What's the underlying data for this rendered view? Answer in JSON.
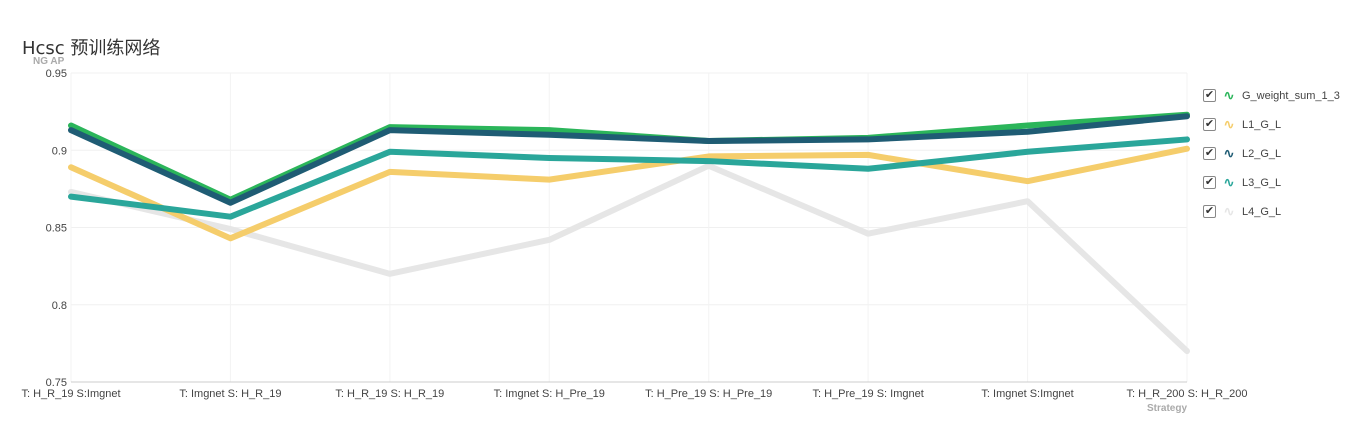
{
  "title": "Hcsc 预训练网络",
  "chart_data": {
    "type": "line",
    "title": "Hcsc 预训练网络",
    "ylabel": "NG AP",
    "xlabel": "Strategy",
    "ylim": [
      0.75,
      0.95
    ],
    "yticks": [
      "0.95",
      "0.9",
      "0.85",
      "0.8",
      "0.75"
    ],
    "grid": true,
    "legend_position": "right",
    "categories": [
      "T: H_R_19 S:Imgnet",
      "T: Imgnet S: H_R_19",
      "T: H_R_19 S: H_R_19",
      "T: Imgnet S: H_Pre_19",
      "T: H_Pre_19 S: H_Pre_19",
      "T: H_Pre_19 S: Imgnet",
      "T: Imgnet S:Imgnet",
      "T: H_R_200 S: H_R_200"
    ],
    "series": [
      {
        "name": "L4_G_L",
        "color": "#e6e6e6",
        "values": [
          0.873,
          0.849,
          0.82,
          0.842,
          0.89,
          0.846,
          0.867,
          0.77
        ]
      },
      {
        "name": "L1_G_L",
        "color": "#f5cd6b",
        "values": [
          0.889,
          0.843,
          0.886,
          0.881,
          0.896,
          0.897,
          0.88,
          0.901
        ]
      },
      {
        "name": "L3_G_L",
        "color": "#2aa69a",
        "values": [
          0.87,
          0.857,
          0.899,
          0.895,
          0.893,
          0.888,
          0.899,
          0.907
        ]
      },
      {
        "name": "G_weight_sum_1_3",
        "color": "#2bb55a",
        "values": [
          0.916,
          0.868,
          0.915,
          0.913,
          0.906,
          0.908,
          0.916,
          0.923
        ]
      },
      {
        "name": "L2_G_L",
        "color": "#1f5c74",
        "values": [
          0.913,
          0.866,
          0.913,
          0.91,
          0.906,
          0.907,
          0.912,
          0.922
        ]
      }
    ]
  },
  "legend": {
    "items": [
      {
        "label": "G_weight_sum_1_3",
        "color": "#2bb55a",
        "check": "✔",
        "icon": "∿"
      },
      {
        "label": "L1_G_L",
        "color": "#f5cd6b",
        "check": "✔",
        "icon": "∿"
      },
      {
        "label": "L2_G_L",
        "color": "#1f5c74",
        "check": "✔",
        "icon": "∿"
      },
      {
        "label": "L3_G_L",
        "color": "#2aa69a",
        "check": "✔",
        "icon": "∿"
      },
      {
        "label": "L4_G_L",
        "color": "#e6e6e6",
        "check": "✔",
        "icon": "∿"
      }
    ]
  }
}
